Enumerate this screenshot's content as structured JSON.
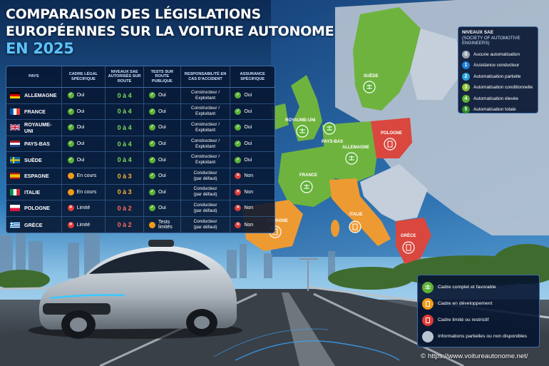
{
  "title": {
    "line1": "COMPARAISON DES LÉGISLATIONS",
    "line2": "EUROPÉENNES SUR LA VOITURE AUTONOME",
    "line3": "EN 2025"
  },
  "table": {
    "headers": {
      "country": "PAYS",
      "cadre": "CADRE LÉGAL SPÉCIFIQUE",
      "sae": "NIVEAUX SAE AUTORISÉS SUR ROUTE",
      "tests": "TESTS SUR ROUTE PUBLIQUE",
      "resp": "RESPONSABILITÉ EN CAS D'ACCIDENT",
      "assur": "ASSURANCE SPÉCIFIQUE"
    },
    "rows": [
      {
        "country": "ALLEMAGNE",
        "flag": "de",
        "cadre": "Oui",
        "cadre_status": "green",
        "sae": "0 à 4",
        "tests": "Oui",
        "tests_status": "green",
        "resp1": "Constructeur /",
        "resp2": "Exploitant",
        "assur": "Oui",
        "assur_status": "green"
      },
      {
        "country": "FRANCE",
        "flag": "fr",
        "cadre": "Oui",
        "cadre_status": "green",
        "sae": "0 à 4",
        "tests": "Oui",
        "tests_status": "green",
        "resp1": "Constructeur /",
        "resp2": "Exploitant",
        "assur": "Oui",
        "assur_status": "green"
      },
      {
        "country": "ROYAUME-UNI",
        "flag": "gb",
        "cadre": "Oui",
        "cadre_status": "green",
        "sae": "0 à 4",
        "tests": "Oui",
        "tests_status": "green",
        "resp1": "Constructeur /",
        "resp2": "Exploitant",
        "assur": "Oui",
        "assur_status": "green"
      },
      {
        "country": "PAYS-BAS",
        "flag": "nl",
        "cadre": "Oui",
        "cadre_status": "green",
        "sae": "0 à 4",
        "tests": "Oui",
        "tests_status": "green",
        "resp1": "Constructeur /",
        "resp2": "Exploitant",
        "assur": "Oui",
        "assur_status": "green"
      },
      {
        "country": "SUÈDE",
        "flag": "se",
        "cadre": "Oui",
        "cadre_status": "green",
        "sae": "0 à 4",
        "tests": "Oui",
        "tests_status": "green",
        "resp1": "Constructeur /",
        "resp2": "Exploitant",
        "assur": "Oui",
        "assur_status": "green"
      },
      {
        "country": "ESPAGNE",
        "flag": "es",
        "cadre": "En cours",
        "cadre_status": "orange",
        "sae": "0 à 3",
        "tests": "Oui",
        "tests_status": "green",
        "resp1": "Conducteur",
        "resp2": "(par défaut)",
        "assur": "Non",
        "assur_status": "red"
      },
      {
        "country": "ITALIE",
        "flag": "it",
        "cadre": "En cours",
        "cadre_status": "orange",
        "sae": "0 à 3",
        "tests": "Oui",
        "tests_status": "green",
        "resp1": "Conducteur",
        "resp2": "(par défaut)",
        "assur": "Non",
        "assur_status": "red"
      },
      {
        "country": "POLOGNE",
        "flag": "pl",
        "cadre": "Limité",
        "cadre_status": "red",
        "sae": "0 à 2",
        "tests": "Oui",
        "tests_status": "green",
        "resp1": "Conducteur",
        "resp2": "(par défaut)",
        "assur": "Non",
        "assur_status": "red"
      },
      {
        "country": "GRÈCE",
        "flag": "gr",
        "cadre": "Limité",
        "cadre_status": "red",
        "sae": "0 à 2",
        "tests": "Tests limités",
        "tests_status": "orange",
        "resp1": "Conducteur",
        "resp2": "(par défaut)",
        "assur": "Non",
        "assur_status": "red"
      }
    ]
  },
  "sae_box": {
    "title": "NIVEAUX SAE",
    "subtitle": "(SOCIETY OF AUTOMOTIVE ENGINEERS)",
    "levels": [
      {
        "num": "0",
        "label": "Aucune automatisation",
        "color": "#9aa4b1"
      },
      {
        "num": "1",
        "label": "Assistance conducteur",
        "color": "#1f7fd6"
      },
      {
        "num": "2",
        "label": "Automatisation partielle",
        "color": "#2ca2e0"
      },
      {
        "num": "3",
        "label": "Automatisation conditionnelle",
        "color": "#8fc23a"
      },
      {
        "num": "4",
        "label": "Automatisation élevée",
        "color": "#5cb135"
      },
      {
        "num": "5",
        "label": "Automatisation totale",
        "color": "#2f8f2b"
      }
    ]
  },
  "map": {
    "labels": {
      "suede": "SUÈDE",
      "uk": "ROYAUME-UNI",
      "paysbas": "PAYS-BAS",
      "allemagne": "ALLEMAGNE",
      "pologne": "POLOGNE",
      "france": "FRANCE",
      "espagne": "ESPAGNE",
      "italie": "ITALIE",
      "grece": "GRÈCE"
    },
    "colors": {
      "green": "#6fb33f",
      "orange": "#ee9a33",
      "red": "#d9473e",
      "grey": "#b8c4d2"
    }
  },
  "legend": {
    "items": [
      {
        "label": "Cadre complet et favorable",
        "color": "#5cb135",
        "icon": "scale-icon"
      },
      {
        "label": "Cadre en développement",
        "color": "#f29b17",
        "icon": "document-icon"
      },
      {
        "label": "Cadre limité ou restrictif",
        "color": "#e03b36",
        "icon": "document-icon"
      },
      {
        "label": "Informations partielles ou non disponibles",
        "color": "#b8c4d2",
        "icon": "grey-circle"
      }
    ]
  },
  "website": "https://www.voitureautonome.net/"
}
